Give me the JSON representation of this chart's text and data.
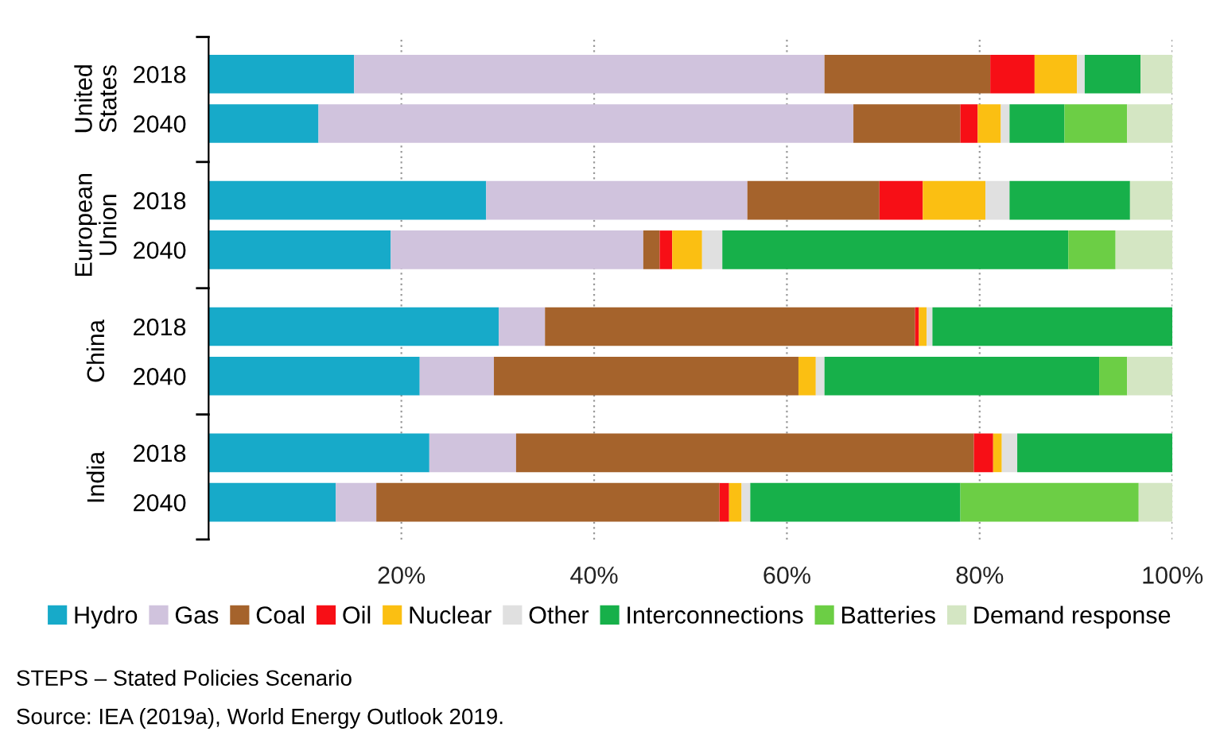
{
  "chart_data": {
    "type": "bar",
    "orientation": "horizontal",
    "stacked": true,
    "categories": [
      "2018",
      "2040",
      "2018",
      "2040",
      "2018",
      "2040",
      "2018",
      "2040"
    ],
    "series": [
      {
        "name": "Hydro",
        "color": "#17aac9",
        "values": [
          15.1,
          11.4,
          28.8,
          18.9,
          30.1,
          21.9,
          22.9,
          13.2
        ]
      },
      {
        "name": "Gas",
        "color": "#d0c3dd",
        "values": [
          48.8,
          55.5,
          27.1,
          26.2,
          4.8,
          7.7,
          9.0,
          4.2
        ]
      },
      {
        "name": "Coal",
        "color": "#a5632c",
        "values": [
          17.2,
          11.1,
          13.7,
          1.7,
          38.4,
          31.6,
          47.5,
          35.6
        ]
      },
      {
        "name": "Oil",
        "color": "#f70f16",
        "values": [
          4.6,
          1.8,
          4.5,
          1.3,
          0.4,
          0,
          2.0,
          1.0
        ]
      },
      {
        "name": "Nuclear",
        "color": "#fbbf12",
        "values": [
          4.4,
          2.4,
          6.5,
          3.1,
          0.8,
          1.8,
          0.9,
          1.3
        ]
      },
      {
        "name": "Other",
        "color": "#e0e0e0",
        "values": [
          0.8,
          0.9,
          2.5,
          2.1,
          0.6,
          0.9,
          1.6,
          0.9
        ]
      },
      {
        "name": "Interconnections",
        "color": "#17b04a",
        "values": [
          5.8,
          5.7,
          12.5,
          35.9,
          24.9,
          28.5,
          16.1,
          21.8
        ]
      },
      {
        "name": "Batteries",
        "color": "#6cce45",
        "values": [
          0,
          6.5,
          0,
          4.9,
          0,
          2.9,
          0,
          18.5
        ]
      },
      {
        "name": "Demand response",
        "color": "#d4e6c3",
        "values": [
          3.3,
          4.7,
          4.4,
          5.9,
          0,
          4.7,
          0,
          3.5
        ]
      }
    ],
    "xlim": [
      0,
      100
    ],
    "xticks": [
      {
        "value": 20,
        "label": "20%"
      },
      {
        "value": 40,
        "label": "40%"
      },
      {
        "value": 60,
        "label": "60%"
      },
      {
        "value": 80,
        "label": "80%"
      },
      {
        "value": 100,
        "label": "100%"
      }
    ],
    "grid": "x",
    "legend": "bottom",
    "annotations": [
      "United States",
      "European Union",
      "China",
      "India",
      "STEPS – Stated Policies Scenario",
      "Source: IEA (2019a), World Energy Outlook 2019."
    ]
  }
}
